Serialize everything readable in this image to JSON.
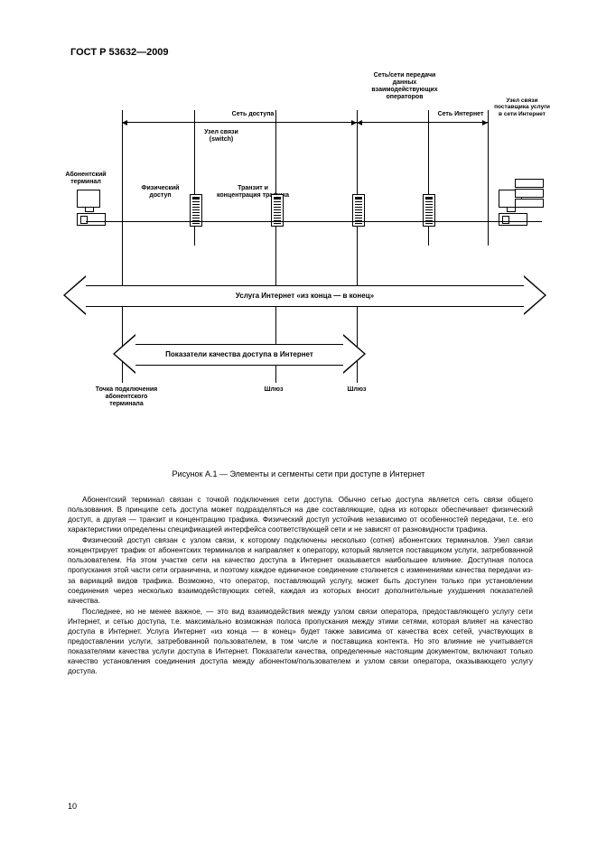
{
  "header": "ГОСТ Р 53632—2009",
  "diagram": {
    "top_label": "Сеть/сети передачи данных взаимодействующих операторов",
    "span_access": "Сеть доступа",
    "span_internet": "Сеть Интернет",
    "provider_label": "Узел связи поставщика услуги в сети Интернет",
    "uzel_switch": "Узел связи (switch)",
    "terminal": "Абонентский терминал",
    "phys": "Физический доступ",
    "transit": "Транзит и концентрация трафика",
    "big_arrow_1": "Услуга Интернет «из конца — в конец»",
    "big_arrow_2": "Показатели качества доступа в Интернет",
    "bottom_tp": "Точка подключения абонентского терминала",
    "bottom_shluz": "Шлюз",
    "caption": "Рисунок А.1 — Элементы и сегменты сети при доступе в Интернет"
  },
  "paragraphs": [
    "Абонентский терминал связан с точкой подключения сети доступа. Обычно сетью доступа является сеть связи общего пользования. В принципе сеть доступа может подразделяться на две составляющие, одна из которых обеспечивает физический доступ, а другая — транзит и концентрацию трафика. Физический доступ устойчив независимо от особенностей передачи, т.е. его характеристики определены спецификацией интерфейса соответствующей сети и не зависят от разновидности трафика.",
    "Физический доступ связан с узлом связи, к которому подключены несколько (сотня) абонентских терминалов. Узел связи концентрирует трафик от абонентских терминалов и направляет к оператору, который является поставщиком услуги, затребованной пользователем. На этом участке сети на качество доступа в Интернет оказывается наибольшее влияние. Доступная полоса пропускания этой части сети ограничена, и поэтому каждое единичное соединение столкнется с изменениями качества передачи из-за вариаций видов трафика. Возможно, что оператор, поставляющий услугу, может быть доступен только при установлении соединения через несколько взаимодействующих сетей, каждая из которых вносит дополнительные ухудшения показателей качества.",
    "Последнее, но не менее важное, — это вид взаимодействия между узлом связи оператора, предоставляющего услугу сети Интернет, и сетью доступа, т.е. максимально возможная полоса пропускания между этими сетями, которая влияет на качество доступа в Интернет. Услуга Интернет «из конца — в конец» будет также зависима от качества всех сетей, участвующих в предоставлении услуги, затребованной пользователем, в том числе и поставщика контента. Но это влияние не учитывается показателями качества услуги доступа в Интернет. Показатели качества, определенные настоящим документом, включают только качество установления соединения доступа между абонентом/пользователем и узлом связи оператора, оказывающего услугу доступа."
  ],
  "page_number": "10",
  "colors": {
    "line": "#000000",
    "bg": "#ffffff"
  }
}
